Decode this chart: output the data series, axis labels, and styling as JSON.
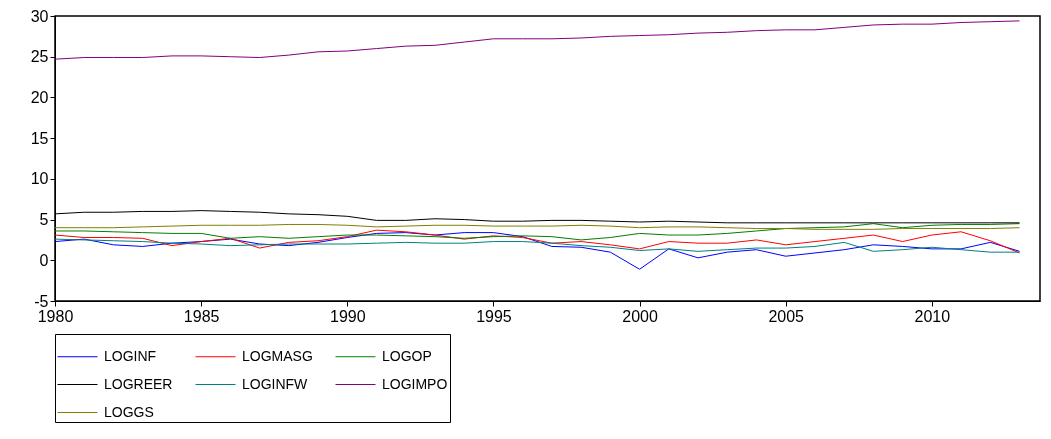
{
  "chart_data": {
    "type": "line",
    "x": [
      1980,
      1981,
      1982,
      1983,
      1984,
      1985,
      1986,
      1987,
      1988,
      1989,
      1990,
      1991,
      1992,
      1993,
      1994,
      1995,
      1996,
      1997,
      1998,
      1999,
      2000,
      2001,
      2002,
      2003,
      2004,
      2005,
      2006,
      2007,
      2008,
      2009,
      2010,
      2011,
      2012,
      2013
    ],
    "xlim": [
      1980,
      2013.7
    ],
    "xticks": [
      1980,
      1985,
      1990,
      1995,
      2000,
      2005,
      2010
    ],
    "ylim": [
      -5,
      30
    ],
    "yticks": [
      -5,
      0,
      5,
      10,
      15,
      20,
      25,
      30
    ],
    "grid": false,
    "legend": "bottom",
    "line_style": "solid",
    "marker": "none",
    "series": [
      {
        "name": "LOGINF",
        "color": "#0000ff",
        "values": [
          2.3,
          2.6,
          1.9,
          1.7,
          2.1,
          2.3,
          2.6,
          2.0,
          1.8,
          2.2,
          2.8,
          3.3,
          3.4,
          3.1,
          3.4,
          3.4,
          2.9,
          1.7,
          1.6,
          1.0,
          -1.1,
          1.4,
          0.3,
          1.0,
          1.3,
          0.5,
          0.9,
          1.3,
          1.9,
          1.7,
          1.4,
          1.4,
          2.2,
          1.1
        ]
      },
      {
        "name": "LOGMASG",
        "color": "#ff0000",
        "values": [
          3.1,
          2.8,
          2.8,
          2.7,
          1.8,
          2.3,
          2.7,
          1.5,
          2.2,
          2.4,
          2.9,
          3.7,
          3.5,
          3.1,
          2.6,
          3.0,
          2.8,
          2.1,
          2.3,
          1.9,
          1.4,
          2.3,
          2.1,
          2.1,
          2.5,
          1.9,
          2.3,
          2.7,
          3.1,
          2.3,
          3.1,
          3.5,
          2.4,
          0.9
        ]
      },
      {
        "name": "LOGOP",
        "color": "#008000",
        "values": [
          3.6,
          3.6,
          3.5,
          3.4,
          3.3,
          3.3,
          2.7,
          2.9,
          2.7,
          2.9,
          3.1,
          3.1,
          3.0,
          2.9,
          2.7,
          2.9,
          3.0,
          2.9,
          2.5,
          2.8,
          3.3,
          3.1,
          3.1,
          3.3,
          3.6,
          3.9,
          4.0,
          4.1,
          4.5,
          4.0,
          4.3,
          4.4,
          4.4,
          4.5
        ]
      },
      {
        "name": "LOGREER",
        "color": "#000000",
        "values": [
          5.7,
          5.9,
          5.9,
          6.0,
          6.0,
          6.1,
          6.0,
          5.9,
          5.7,
          5.6,
          5.4,
          4.9,
          4.9,
          5.1,
          5.0,
          4.8,
          4.8,
          4.9,
          4.9,
          4.8,
          4.7,
          4.8,
          4.7,
          4.6,
          4.6,
          4.6,
          4.6,
          4.6,
          4.6,
          4.6,
          4.6,
          4.6,
          4.6,
          4.6
        ]
      },
      {
        "name": "LOGINFW",
        "color": "#008080",
        "values": [
          2.6,
          2.5,
          2.4,
          2.3,
          2.1,
          2.0,
          1.8,
          1.9,
          2.0,
          2.0,
          2.0,
          2.1,
          2.2,
          2.1,
          2.1,
          2.3,
          2.3,
          2.1,
          1.8,
          1.6,
          1.2,
          1.4,
          1.1,
          1.3,
          1.5,
          1.5,
          1.7,
          2.2,
          1.1,
          1.3,
          1.6,
          1.3,
          1.0,
          1.0
        ]
      },
      {
        "name": "LOGIMPO",
        "color": "#800080",
        "values": [
          24.7,
          24.9,
          24.9,
          24.9,
          25.1,
          25.1,
          25.0,
          24.9,
          25.2,
          25.6,
          25.7,
          26.0,
          26.3,
          26.4,
          26.8,
          27.2,
          27.2,
          27.2,
          27.3,
          27.5,
          27.6,
          27.7,
          27.9,
          28.0,
          28.2,
          28.3,
          28.3,
          28.6,
          28.9,
          29.0,
          29.0,
          29.2,
          29.3,
          29.4
        ]
      },
      {
        "name": "LOGGS",
        "color": "#808000",
        "values": [
          4.0,
          4.0,
          4.0,
          4.1,
          4.2,
          4.3,
          4.3,
          4.3,
          4.4,
          4.4,
          4.3,
          4.1,
          4.2,
          4.3,
          4.3,
          4.2,
          4.2,
          4.2,
          4.3,
          4.2,
          4.0,
          4.1,
          4.1,
          4.0,
          3.9,
          3.9,
          3.8,
          3.8,
          3.8,
          3.9,
          3.9,
          3.9,
          3.9,
          4.0
        ]
      }
    ]
  }
}
